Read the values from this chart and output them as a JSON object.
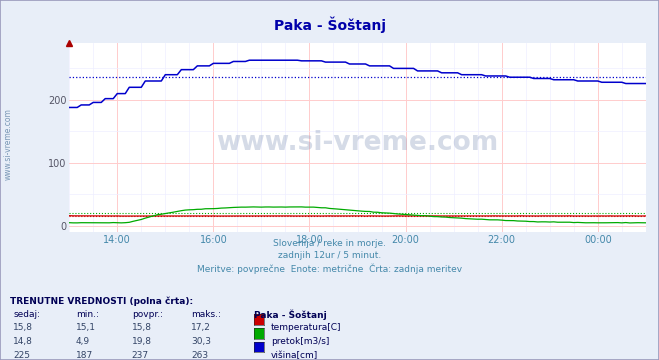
{
  "title": "Paka - Šoštanj",
  "background_color": "#e8eef8",
  "plot_bg_color": "#ffffff",
  "grid_color_major": "#ffcccc",
  "grid_color_minor": "#eeeeff",
  "xlabel_color": "#4488aa",
  "ylim": [
    -10,
    290
  ],
  "xlim": [
    0,
    144
  ],
  "yticks": [
    0,
    100,
    200
  ],
  "x_tick_positions": [
    12,
    36,
    60,
    84,
    108,
    132
  ],
  "x_tick_labels": [
    "14:00",
    "16:00",
    "18:00",
    "20:00",
    "22:00",
    "00:00"
  ],
  "subtitle_lines": [
    "Slovenija / reke in morje.",
    "zadnjih 12ur / 5 minut.",
    "Meritve: povprečne  Enote: metrične  Črta: zadnja meritev"
  ],
  "watermark_text": "www.si-vreme.com",
  "side_text": "www.si-vreme.com",
  "table_header": "TRENUTNE VREDNOSTI (polna črta):",
  "table_col_headers": [
    "sedaj:",
    "min.:",
    "povpr.:",
    "maks.:",
    "Paka - Šoštanj"
  ],
  "table_rows": [
    [
      "15,8",
      "15,1",
      "15,8",
      "17,2",
      "temperatura[C]",
      "#cc0000"
    ],
    [
      "14,8",
      "4,9",
      "19,8",
      "30,3",
      "pretok[m3/s]",
      "#00aa00"
    ],
    [
      "225",
      "187",
      "237",
      "263",
      "višina[cm]",
      "#0000cc"
    ]
  ],
  "avg_temp": 15.8,
  "avg_flow": 19.8,
  "avg_height": 237,
  "temp_color": "#cc0000",
  "flow_color": "#00aa00",
  "height_color": "#0000cc"
}
